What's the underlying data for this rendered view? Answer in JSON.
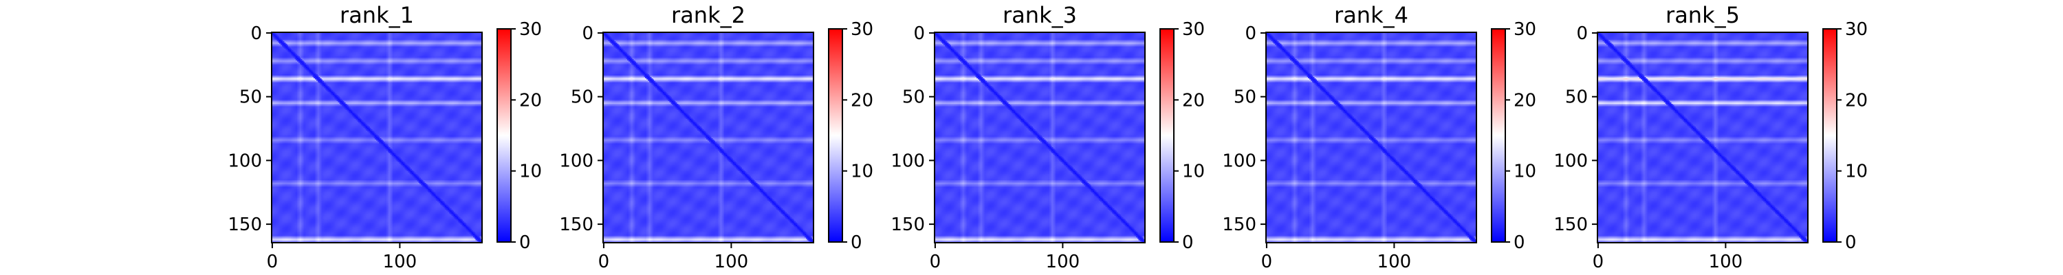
{
  "chart_data": [
    {
      "type": "heatmap",
      "title": "rank_1",
      "xlabel": "",
      "ylabel": "",
      "xlim": [
        0,
        165
      ],
      "ylim": [
        165,
        0
      ],
      "x_ticks": [
        "0",
        "100"
      ],
      "y_ticks": [
        "0",
        "50",
        "100",
        "150"
      ],
      "colorbar": {
        "vmin": 0,
        "vmax": 30,
        "ticks": [
          "0",
          "10",
          "20",
          "30"
        ],
        "colormap": "bwr"
      },
      "matrix_size": 165,
      "typical_value": 4,
      "diagonal_value": 1,
      "bright_rows": [
        [
          8,
          6
        ],
        [
          22,
          5
        ],
        [
          36,
          10
        ],
        [
          55,
          6
        ],
        [
          84,
          4
        ],
        [
          118,
          4
        ],
        [
          162,
          9
        ]
      ],
      "bright_cols": [
        [
          22,
          4
        ],
        [
          36,
          4
        ],
        [
          92,
          4
        ]
      ]
    },
    {
      "type": "heatmap",
      "title": "rank_2",
      "xlabel": "",
      "ylabel": "",
      "xlim": [
        0,
        165
      ],
      "ylim": [
        165,
        0
      ],
      "x_ticks": [
        "0",
        "100"
      ],
      "y_ticks": [
        "0",
        "50",
        "100",
        "150"
      ],
      "colorbar": {
        "vmin": 0,
        "vmax": 30,
        "ticks": [
          "0",
          "10",
          "20",
          "30"
        ],
        "colormap": "bwr"
      },
      "matrix_size": 165,
      "typical_value": 4,
      "diagonal_value": 1,
      "bright_rows": [
        [
          8,
          6
        ],
        [
          22,
          5
        ],
        [
          36,
          10
        ],
        [
          55,
          6
        ],
        [
          84,
          4
        ],
        [
          118,
          4
        ],
        [
          162,
          9
        ]
      ],
      "bright_cols": [
        [
          22,
          4
        ],
        [
          36,
          4
        ],
        [
          92,
          4
        ]
      ]
    },
    {
      "type": "heatmap",
      "title": "rank_3",
      "xlabel": "",
      "ylabel": "",
      "xlim": [
        0,
        165
      ],
      "ylim": [
        165,
        0
      ],
      "x_ticks": [
        "0",
        "100"
      ],
      "y_ticks": [
        "0",
        "50",
        "100",
        "150"
      ],
      "colorbar": {
        "vmin": 0,
        "vmax": 30,
        "ticks": [
          "0",
          "10",
          "20",
          "30"
        ],
        "colormap": "bwr"
      },
      "matrix_size": 165,
      "typical_value": 4,
      "diagonal_value": 1,
      "bright_rows": [
        [
          8,
          6
        ],
        [
          22,
          5
        ],
        [
          36,
          10
        ],
        [
          55,
          6
        ],
        [
          84,
          4
        ],
        [
          118,
          4
        ],
        [
          162,
          9
        ]
      ],
      "bright_cols": [
        [
          22,
          4
        ],
        [
          36,
          4
        ],
        [
          92,
          4
        ]
      ]
    },
    {
      "type": "heatmap",
      "title": "rank_4",
      "xlabel": "",
      "ylabel": "",
      "xlim": [
        0,
        165
      ],
      "ylim": [
        165,
        0
      ],
      "x_ticks": [
        "0",
        "100"
      ],
      "y_ticks": [
        "0",
        "50",
        "100",
        "150"
      ],
      "colorbar": {
        "vmin": 0,
        "vmax": 30,
        "ticks": [
          "0",
          "10",
          "20",
          "30"
        ],
        "colormap": "bwr"
      },
      "matrix_size": 165,
      "typical_value": 4,
      "diagonal_value": 1,
      "bright_rows": [
        [
          8,
          6
        ],
        [
          22,
          5
        ],
        [
          36,
          10
        ],
        [
          55,
          6
        ],
        [
          84,
          4
        ],
        [
          118,
          4
        ],
        [
          162,
          9
        ]
      ],
      "bright_cols": [
        [
          22,
          4
        ],
        [
          36,
          4
        ],
        [
          92,
          4
        ]
      ]
    },
    {
      "type": "heatmap",
      "title": "rank_5",
      "xlabel": "",
      "ylabel": "",
      "xlim": [
        0,
        165
      ],
      "ylim": [
        165,
        0
      ],
      "x_ticks": [
        "0",
        "100"
      ],
      "y_ticks": [
        "0",
        "50",
        "100",
        "150"
      ],
      "colorbar": {
        "vmin": 0,
        "vmax": 30,
        "ticks": [
          "0",
          "10",
          "20",
          "30"
        ],
        "colormap": "bwr"
      },
      "matrix_size": 165,
      "typical_value": 4,
      "diagonal_value": 1,
      "bright_rows": [
        [
          8,
          6
        ],
        [
          22,
          5
        ],
        [
          36,
          12
        ],
        [
          55,
          9
        ],
        [
          84,
          4
        ],
        [
          118,
          4
        ],
        [
          162,
          9
        ]
      ],
      "bright_cols": [
        [
          22,
          4
        ],
        [
          36,
          4
        ],
        [
          92,
          4
        ]
      ]
    }
  ]
}
